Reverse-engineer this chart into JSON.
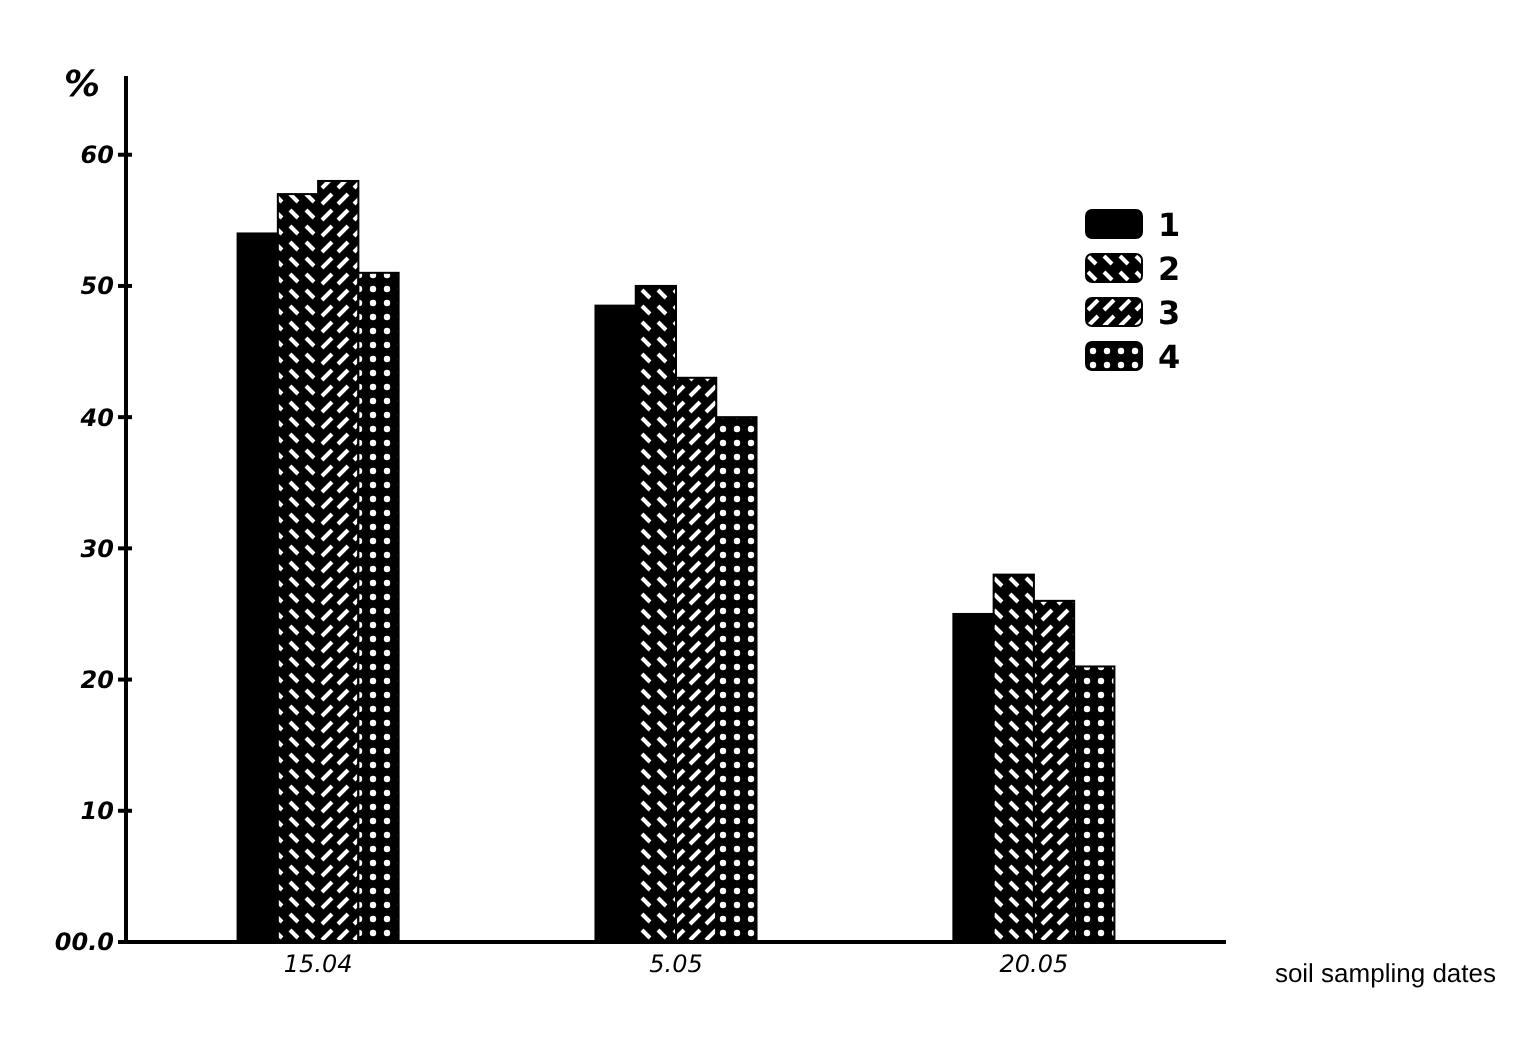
{
  "chart_data": {
    "type": "bar",
    "ylabel": "%",
    "xlabel": "soil sampling dates",
    "categories": [
      "15.04",
      "5.05",
      "20.05"
    ],
    "series": [
      {
        "name": "1",
        "color": "#000000",
        "values": [
          54,
          48.5,
          25
        ]
      },
      {
        "name": "2",
        "color": "#000000",
        "values": [
          57,
          50,
          28
        ]
      },
      {
        "name": "3",
        "color": "#000000",
        "values": [
          58,
          43,
          26
        ]
      },
      {
        "name": "4",
        "color": "#000000",
        "values": [
          51,
          40,
          21
        ]
      }
    ],
    "ylim": [
      0,
      66
    ],
    "yticks": [
      {
        "value": 0,
        "label": "00.0"
      },
      10,
      20,
      30,
      40,
      50,
      60
    ],
    "legend": "top right",
    "grid": false
  }
}
